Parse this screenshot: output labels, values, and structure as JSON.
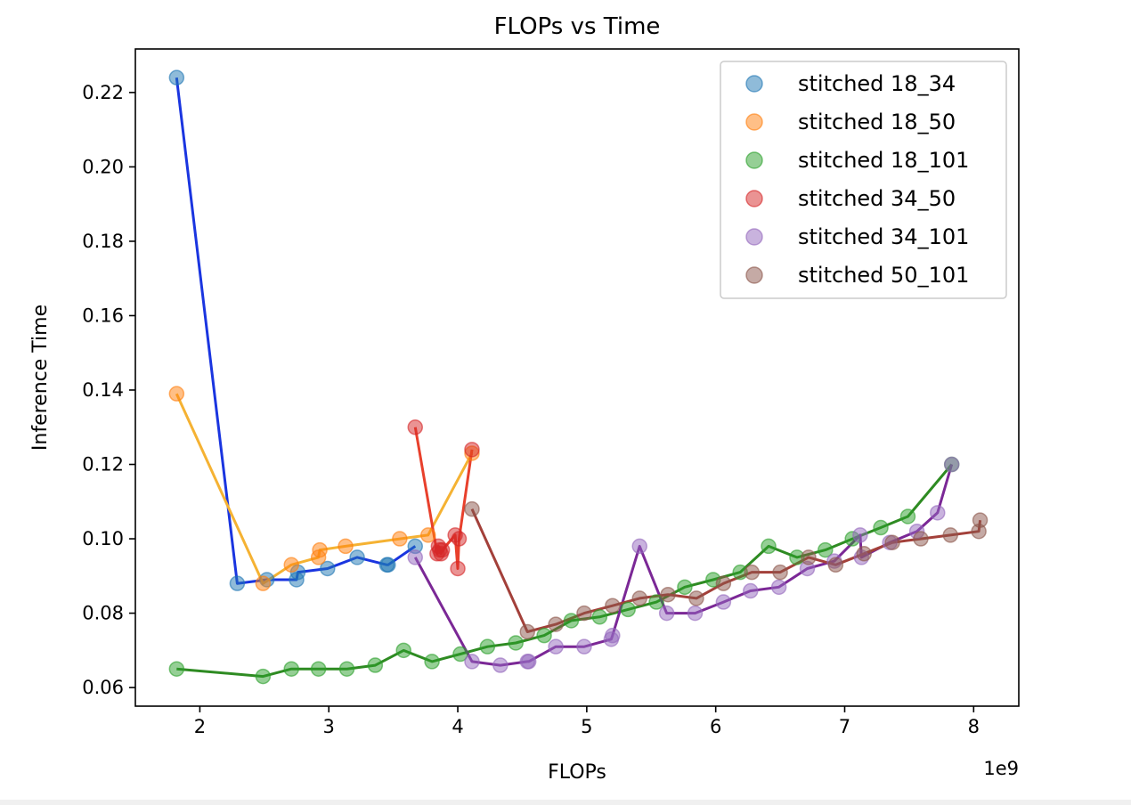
{
  "chart_data": {
    "type": "scatter",
    "title": "FLOPs vs Time",
    "xlabel": "FLOPs",
    "ylabel": "Inference Time",
    "x_offset_label": "1e9",
    "xlim": [
      1.5,
      8.35
    ],
    "ylim": [
      0.055,
      0.2317
    ],
    "x_ticks": [
      2,
      3,
      4,
      5,
      6,
      7,
      8
    ],
    "x_tick_labels": [
      "2",
      "3",
      "4",
      "5",
      "6",
      "7",
      "8"
    ],
    "y_ticks": [
      0.06,
      0.08,
      0.1,
      0.12,
      0.14,
      0.16,
      0.18,
      0.2,
      0.22
    ],
    "y_tick_labels": [
      "0.06",
      "0.08",
      "0.10",
      "0.12",
      "0.14",
      "0.16",
      "0.18",
      "0.20",
      "0.22"
    ],
    "grid": false,
    "legend_position": "top-right",
    "series": [
      {
        "name": "stitched 18_34",
        "marker_color": "#1f77b4",
        "line_color": "#1a35e0",
        "x": [
          1.82,
          2.29,
          2.52,
          2.75,
          2.76,
          2.99,
          3.22,
          3.45,
          3.46,
          3.67
        ],
        "y": [
          0.224,
          0.088,
          0.089,
          0.089,
          0.091,
          0.092,
          0.095,
          0.093,
          0.093,
          0.098
        ]
      },
      {
        "name": "stitched 18_50",
        "marker_color": "#ff7f0e",
        "line_color": "#f5b233",
        "x": [
          1.82,
          2.49,
          2.71,
          2.92,
          2.93,
          3.13,
          3.55,
          3.77,
          4.11
        ],
        "y": [
          0.139,
          0.088,
          0.093,
          0.095,
          0.097,
          0.098,
          0.1,
          0.101,
          0.123
        ]
      },
      {
        "name": "stitched 18_101",
        "marker_color": "#2ca02c",
        "line_color": "#2e8b22",
        "x": [
          1.82,
          2.49,
          2.71,
          2.92,
          3.14,
          3.36,
          3.58,
          3.8,
          4.02,
          4.23,
          4.45,
          4.67,
          4.88,
          5.1,
          5.32,
          5.54,
          5.76,
          5.98,
          6.19,
          6.41,
          6.63,
          6.85,
          7.06,
          7.28,
          7.49,
          7.83
        ],
        "y": [
          0.065,
          0.063,
          0.065,
          0.065,
          0.065,
          0.066,
          0.07,
          0.067,
          0.069,
          0.071,
          0.072,
          0.074,
          0.078,
          0.079,
          0.081,
          0.083,
          0.087,
          0.089,
          0.091,
          0.098,
          0.095,
          0.097,
          0.1,
          0.103,
          0.106,
          0.12
        ]
      },
      {
        "name": "stitched 34_50",
        "marker_color": "#d62728",
        "line_color": "#e8402c",
        "x": [
          3.67,
          3.84,
          3.85,
          3.86,
          3.87,
          3.88,
          3.98,
          4.0,
          4.01,
          4.11
        ],
        "y": [
          0.13,
          0.096,
          0.098,
          0.097,
          0.096,
          0.097,
          0.101,
          0.092,
          0.1,
          0.124
        ]
      },
      {
        "name": "stitched 34_101",
        "marker_color": "#9467bd",
        "line_color": "#7b2896",
        "x": [
          3.67,
          4.11,
          4.33,
          4.54,
          4.55,
          4.76,
          4.98,
          5.19,
          5.2,
          5.41,
          5.62,
          5.84,
          6.06,
          6.27,
          6.49,
          6.71,
          6.92,
          7.12,
          7.13,
          7.35,
          7.56,
          7.72,
          7.83
        ],
        "y": [
          0.095,
          0.067,
          0.066,
          0.067,
          0.067,
          0.071,
          0.071,
          0.073,
          0.074,
          0.098,
          0.08,
          0.08,
          0.083,
          0.086,
          0.087,
          0.092,
          0.094,
          0.101,
          0.095,
          0.099,
          0.102,
          0.107,
          0.12
        ]
      },
      {
        "name": "stitched 50_101",
        "marker_color": "#8c564b",
        "line_color": "#a3403a",
        "x": [
          4.11,
          4.54,
          4.76,
          4.98,
          5.2,
          5.41,
          5.63,
          5.85,
          6.06,
          6.28,
          6.5,
          6.72,
          6.93,
          7.15,
          7.37,
          7.59,
          7.82,
          8.04,
          8.05
        ],
        "y": [
          0.108,
          0.075,
          0.077,
          0.08,
          0.082,
          0.084,
          0.085,
          0.084,
          0.088,
          0.091,
          0.091,
          0.095,
          0.093,
          0.096,
          0.099,
          0.1,
          0.101,
          0.102,
          0.105
        ]
      }
    ]
  }
}
